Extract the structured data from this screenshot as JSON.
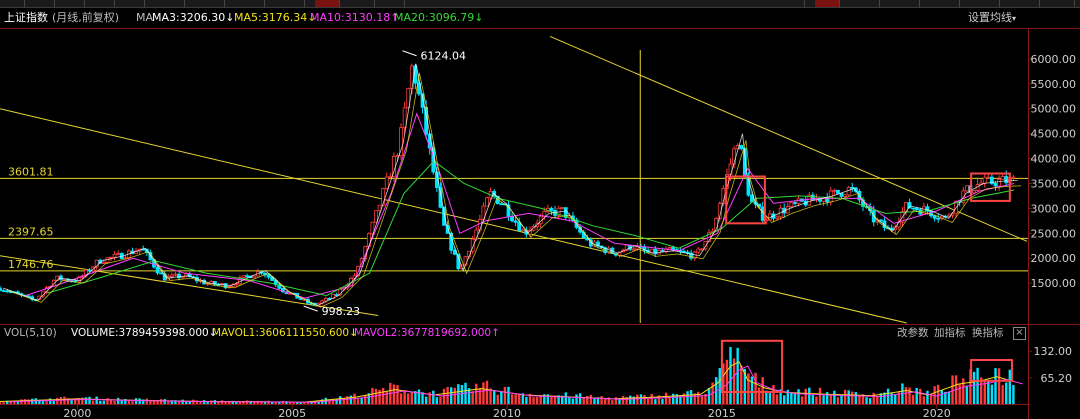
{
  "header": {
    "index_name": "上证指数",
    "period": "(月线,前复权)",
    "ma_label": "MA",
    "ma_values": [
      {
        "text": "MA3:3206.30↓",
        "color": "#ffffff"
      },
      {
        "text": "MA5:3176.34↓",
        "color": "#f2e11a"
      },
      {
        "text": "MA10:3130.18↑",
        "color": "#ff3dff"
      },
      {
        "text": "MA20:3096.79↓",
        "color": "#34d934"
      }
    ],
    "settings_label": "设置均线",
    "settings_icon": "caret-down-icon"
  },
  "volume_header": {
    "title": "VOL(5,10)",
    "volume": {
      "text": "VOLUME:3789459398.000↓",
      "color": "#ffffff"
    },
    "mavol1": {
      "text": "MAVOL1:3606111550.600↓",
      "color": "#f2e11a"
    },
    "mavol2": {
      "text": "MAVOL2:3677819692.000↑",
      "color": "#ff3dff"
    },
    "buttons": [
      "改参数",
      "加指标",
      "换指标"
    ],
    "close_icon": "close-icon",
    "close_glyph": "×"
  },
  "colors": {
    "up": "#ff3b3b",
    "down": "#00e5ff",
    "trendline": "#e6d630",
    "background": "#000000",
    "highlight_box": "#ff4444"
  },
  "chart_data": [
    {
      "type": "candlestick",
      "title": "上证指数 (月线,前复权)",
      "y_ticks": [
        1500,
        2000,
        2500,
        3000,
        3500,
        4000,
        4500,
        5000,
        5500,
        6000
      ],
      "y_tick_labels": [
        "1500.00",
        "2000.00",
        "2500.00",
        "3000.00",
        "3500.00",
        "4000.00",
        "4500.00",
        "5000.00",
        "5500.00",
        "6000.00"
      ],
      "ylim": [
        700,
        6600
      ],
      "x_ticks": [
        2000,
        2005,
        2010,
        2015,
        2020
      ],
      "xlim": [
        1998.2,
        2022.1
      ],
      "horizontal_levels": [
        {
          "value": 3601.81,
          "label": "3601.81"
        },
        {
          "value": 2397.65,
          "label": "2397.65"
        },
        {
          "value": 1746.76,
          "label": "1746.76"
        }
      ],
      "annotations": [
        {
          "x": 2007.8,
          "y": 6124.04,
          "text": "6124.04"
        },
        {
          "x": 2005.5,
          "y": 998.23,
          "text": "998.23"
        }
      ],
      "vertical_line_x": 2013.1,
      "trendlines": [
        {
          "x1": 1998.2,
          "y1": 5000,
          "x2": 2019.3,
          "y2": 700
        },
        {
          "x1": 1998.2,
          "y1": 2050,
          "x2": 2007.0,
          "y2": 850
        },
        {
          "x1": 2011.0,
          "y1": 6450,
          "x2": 2022.1,
          "y2": 2340
        }
      ],
      "highlight_boxes": [
        {
          "x1": 2015.1,
          "x2": 2016.0,
          "y1": 2700,
          "y2": 3640
        },
        {
          "x1": 2020.8,
          "x2": 2021.7,
          "y1": 3150,
          "y2": 3700
        }
      ],
      "price_path": [
        [
          1998.2,
          1400
        ],
        [
          1999.0,
          1150
        ],
        [
          1999.5,
          1600
        ],
        [
          2000.0,
          1550
        ],
        [
          2000.5,
          1950
        ],
        [
          2001.0,
          2050
        ],
        [
          2001.5,
          2200
        ],
        [
          2002.0,
          1600
        ],
        [
          2002.5,
          1650
        ],
        [
          2003.0,
          1500
        ],
        [
          2003.5,
          1450
        ],
        [
          2004.0,
          1650
        ],
        [
          2004.3,
          1750
        ],
        [
          2004.8,
          1350
        ],
        [
          2005.5,
          1050
        ],
        [
          2006.0,
          1250
        ],
        [
          2006.5,
          1700
        ],
        [
          2007.0,
          3000
        ],
        [
          2007.5,
          4300
        ],
        [
          2007.8,
          5900
        ],
        [
          2008.1,
          4600
        ],
        [
          2008.5,
          2700
        ],
        [
          2008.9,
          1750
        ],
        [
          2009.3,
          2600
        ],
        [
          2009.6,
          3300
        ],
        [
          2009.9,
          3100
        ],
        [
          2010.4,
          2500
        ],
        [
          2010.9,
          2900
        ],
        [
          2011.3,
          2950
        ],
        [
          2011.9,
          2300
        ],
        [
          2012.5,
          2100
        ],
        [
          2012.9,
          2250
        ],
        [
          2013.3,
          2100
        ],
        [
          2013.8,
          2150
        ],
        [
          2014.4,
          2050
        ],
        [
          2014.8,
          2600
        ],
        [
          2015.0,
          3300
        ],
        [
          2015.4,
          4500
        ],
        [
          2015.5,
          3700
        ],
        [
          2015.7,
          3100
        ],
        [
          2016.0,
          2800
        ],
        [
          2016.5,
          3000
        ],
        [
          2017.0,
          3150
        ],
        [
          2017.5,
          3250
        ],
        [
          2018.0,
          3400
        ],
        [
          2018.5,
          2800
        ],
        [
          2018.9,
          2550
        ],
        [
          2019.3,
          3050
        ],
        [
          2019.8,
          2950
        ],
        [
          2020.2,
          2800
        ],
        [
          2020.6,
          3300
        ],
        [
          2021.0,
          3500
        ],
        [
          2021.5,
          3550
        ],
        [
          2021.8,
          3560
        ]
      ],
      "moving_averages": [
        {
          "name": "MA10",
          "color": "#ff3dff",
          "path": [
            [
              1998.8,
              1250
            ],
            [
              2000,
              1600
            ],
            [
              2001.3,
              2000
            ],
            [
              2002.5,
              1700
            ],
            [
              2004,
              1550
            ],
            [
              2005.3,
              1200
            ],
            [
              2006.4,
              1450
            ],
            [
              2007.3,
              3300
            ],
            [
              2007.9,
              4900
            ],
            [
              2008.4,
              3800
            ],
            [
              2008.9,
              2500
            ],
            [
              2009.5,
              2750
            ],
            [
              2010.5,
              2900
            ],
            [
              2011.5,
              2750
            ],
            [
              2012.5,
              2300
            ],
            [
              2014,
              2150
            ],
            [
              2014.9,
              2500
            ],
            [
              2015.6,
              3800
            ],
            [
              2016.2,
              3100
            ],
            [
              2017.2,
              3200
            ],
            [
              2018.2,
              3200
            ],
            [
              2019,
              2700
            ],
            [
              2020,
              2950
            ],
            [
              2021,
              3350
            ],
            [
              2021.8,
              3500
            ]
          ]
        },
        {
          "name": "MA20",
          "color": "#34d934",
          "path": [
            [
              1999.3,
              1300
            ],
            [
              2000.5,
              1600
            ],
            [
              2001.8,
              1950
            ],
            [
              2003,
              1700
            ],
            [
              2004.5,
              1500
            ],
            [
              2005.8,
              1250
            ],
            [
              2006.8,
              1700
            ],
            [
              2007.6,
              3300
            ],
            [
              2008.3,
              3950
            ],
            [
              2009,
              3500
            ],
            [
              2009.8,
              3200
            ],
            [
              2010.8,
              3000
            ],
            [
              2012,
              2650
            ],
            [
              2013,
              2450
            ],
            [
              2014,
              2200
            ],
            [
              2015,
              2600
            ],
            [
              2015.8,
              3200
            ],
            [
              2016.8,
              3250
            ],
            [
              2017.8,
              3200
            ],
            [
              2018.8,
              2900
            ],
            [
              2019.8,
              2950
            ],
            [
              2020.8,
              3200
            ],
            [
              2021.8,
              3370
            ]
          ]
        }
      ]
    },
    {
      "type": "bar",
      "title": "VOL(5,10)",
      "y_ticks": [
        65.2,
        132.0
      ],
      "y_tick_labels": [
        "65.20",
        "132.00"
      ],
      "ylim": [
        0,
        155
      ],
      "volume_path": [
        [
          1998.2,
          8
        ],
        [
          2000.0,
          16
        ],
        [
          2001.2,
          12
        ],
        [
          2003.0,
          8
        ],
        [
          2005.3,
          6
        ],
        [
          2006.5,
          22
        ],
        [
          2007.4,
          45
        ],
        [
          2008.3,
          28
        ],
        [
          2009.4,
          48
        ],
        [
          2010.4,
          28
        ],
        [
          2011.5,
          22
        ],
        [
          2012.5,
          16
        ],
        [
          2013.5,
          22
        ],
        [
          2014.5,
          30
        ],
        [
          2014.9,
          65
        ],
        [
          2015.2,
          118
        ],
        [
          2015.4,
          132
        ],
        [
          2015.6,
          75
        ],
        [
          2016.0,
          50
        ],
        [
          2016.5,
          36
        ],
        [
          2017.5,
          30
        ],
        [
          2018.5,
          26
        ],
        [
          2019.3,
          42
        ],
        [
          2019.8,
          28
        ],
        [
          2020.5,
          62
        ],
        [
          2021.0,
          72
        ],
        [
          2021.4,
          85
        ],
        [
          2021.8,
          70
        ]
      ],
      "highlight_boxes": [
        {
          "x1": 2015.0,
          "x2": 2016.4,
          "y1": 30,
          "y2": 158
        },
        {
          "x1": 2020.8,
          "x2": 2021.75,
          "y1": 58,
          "y2": 110
        }
      ]
    }
  ]
}
